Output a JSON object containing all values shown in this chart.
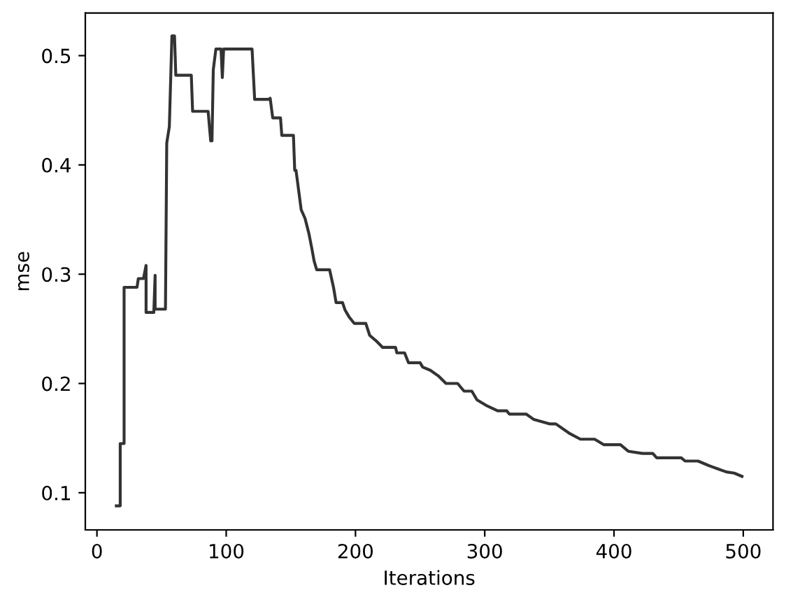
{
  "chart_data": {
    "type": "line",
    "xlabel": "Iterations",
    "ylabel": "mse",
    "xlim": [
      -9,
      523
    ],
    "xticks": [
      0,
      100,
      200,
      300,
      400,
      500
    ],
    "ylim": [
      0.066,
      0.539
    ],
    "yticks": [
      0.1,
      0.2,
      0.3,
      0.4,
      0.5
    ],
    "grid": false,
    "marker": "none",
    "line_style": "solid",
    "series": [
      {
        "color": "#333333",
        "x": [
          15,
          18,
          18,
          21,
          21,
          31,
          32,
          36,
          38,
          38,
          44,
          45,
          45,
          53,
          54,
          56,
          58,
          60,
          61,
          73,
          74,
          86,
          88,
          89,
          90,
          92,
          96,
          97,
          98,
          120,
          122,
          133,
          134,
          136,
          142,
          143,
          152,
          153,
          154,
          158,
          161,
          164,
          166,
          168,
          170,
          180,
          183,
          185,
          190,
          192,
          195,
          199,
          208,
          211,
          216,
          221,
          231,
          232,
          238,
          241,
          250,
          252,
          258,
          264,
          270,
          279,
          284,
          290,
          294,
          301,
          310,
          317,
          319,
          332,
          338,
          350,
          355,
          366,
          374,
          385,
          392,
          405,
          411,
          422,
          430,
          433,
          452,
          455,
          465,
          473,
          480,
          487,
          493,
          499
        ],
        "values": [
          0.088,
          0.088,
          0.145,
          0.145,
          0.288,
          0.288,
          0.296,
          0.296,
          0.308,
          0.265,
          0.265,
          0.299,
          0.268,
          0.268,
          0.42,
          0.435,
          0.518,
          0.518,
          0.482,
          0.482,
          0.449,
          0.449,
          0.422,
          0.422,
          0.487,
          0.506,
          0.506,
          0.48,
          0.506,
          0.506,
          0.46,
          0.46,
          0.461,
          0.443,
          0.443,
          0.427,
          0.427,
          0.395,
          0.395,
          0.359,
          0.351,
          0.337,
          0.325,
          0.312,
          0.304,
          0.304,
          0.288,
          0.274,
          0.274,
          0.267,
          0.261,
          0.255,
          0.255,
          0.244,
          0.239,
          0.233,
          0.233,
          0.228,
          0.228,
          0.219,
          0.219,
          0.215,
          0.212,
          0.207,
          0.2,
          0.2,
          0.193,
          0.193,
          0.185,
          0.18,
          0.175,
          0.175,
          0.172,
          0.172,
          0.167,
          0.163,
          0.163,
          0.154,
          0.149,
          0.149,
          0.144,
          0.144,
          0.138,
          0.136,
          0.136,
          0.132,
          0.132,
          0.129,
          0.129,
          0.125,
          0.122,
          0.119,
          0.118,
          0.115
        ]
      }
    ]
  }
}
